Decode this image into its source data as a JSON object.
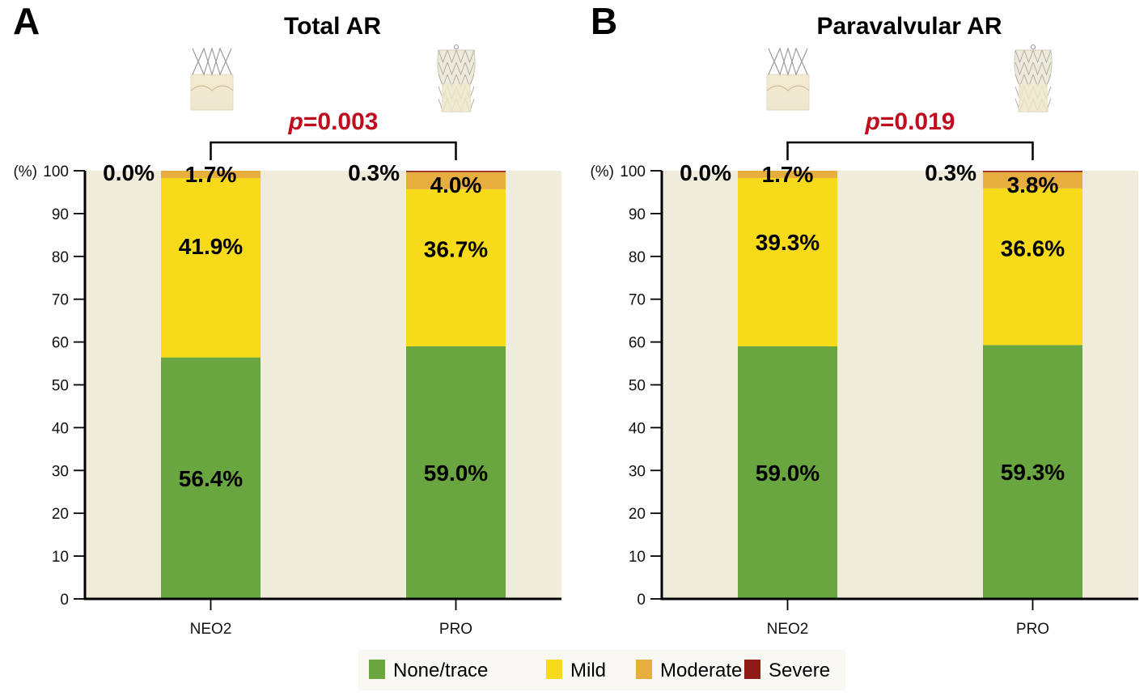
{
  "legend": {
    "items": [
      {
        "label": "None/trace",
        "color": "#69a640"
      },
      {
        "label": "Mild",
        "color": "#f7db1a"
      },
      {
        "label": "Moderate",
        "color": "#e6ad3f"
      },
      {
        "label": "Severe",
        "color": "#8e1b18"
      }
    ]
  },
  "colors": {
    "plot_background": "#f0ecdc",
    "pvalue": "#c00d1e"
  },
  "chart_data": [
    {
      "type": "bar",
      "stacked": true,
      "panel": "A",
      "title": "Total AR",
      "ylabel": "(%)",
      "ylim": [
        0,
        100
      ],
      "yticks": [
        0,
        10,
        20,
        30,
        40,
        50,
        60,
        70,
        80,
        90,
        100
      ],
      "categories": [
        "NEO2",
        "PRO"
      ],
      "series": [
        {
          "name": "None/trace",
          "values": [
            56.4,
            59.0
          ]
        },
        {
          "name": "Mild",
          "values": [
            41.9,
            36.7
          ]
        },
        {
          "name": "Moderate",
          "values": [
            1.7,
            4.0
          ]
        },
        {
          "name": "Severe",
          "values": [
            0.0,
            0.3
          ]
        }
      ],
      "data_labels": [
        {
          "category": "NEO2",
          "labels": [
            "56.4%",
            "41.9%",
            "1.7%",
            "0.0%"
          ]
        },
        {
          "category": "PRO",
          "labels": [
            "59.0%",
            "36.7%",
            "4.0%",
            "0.3%"
          ]
        }
      ],
      "annotation": {
        "prefix": "p",
        "text": "=0.003"
      },
      "legend_position": "bottom-center",
      "grid": false
    },
    {
      "type": "bar",
      "stacked": true,
      "panel": "B",
      "title": "Paravalvular AR",
      "ylabel": "(%)",
      "ylim": [
        0,
        100
      ],
      "yticks": [
        0,
        10,
        20,
        30,
        40,
        50,
        60,
        70,
        80,
        90,
        100
      ],
      "categories": [
        "NEO2",
        "PRO"
      ],
      "series": [
        {
          "name": "None/trace",
          "values": [
            59.0,
            59.3
          ]
        },
        {
          "name": "Mild",
          "values": [
            39.3,
            36.6
          ]
        },
        {
          "name": "Moderate",
          "values": [
            1.7,
            3.8
          ]
        },
        {
          "name": "Severe",
          "values": [
            0.0,
            0.3
          ]
        }
      ],
      "data_labels": [
        {
          "category": "NEO2",
          "labels": [
            "59.0%",
            "39.3%",
            "1.7%",
            "0.0%"
          ]
        },
        {
          "category": "PRO",
          "labels": [
            "59.3%",
            "36.6%",
            "3.8%",
            "0.3%"
          ]
        }
      ],
      "annotation": {
        "prefix": "p",
        "text": "=0.019"
      },
      "legend_position": "bottom-center",
      "grid": false
    }
  ]
}
